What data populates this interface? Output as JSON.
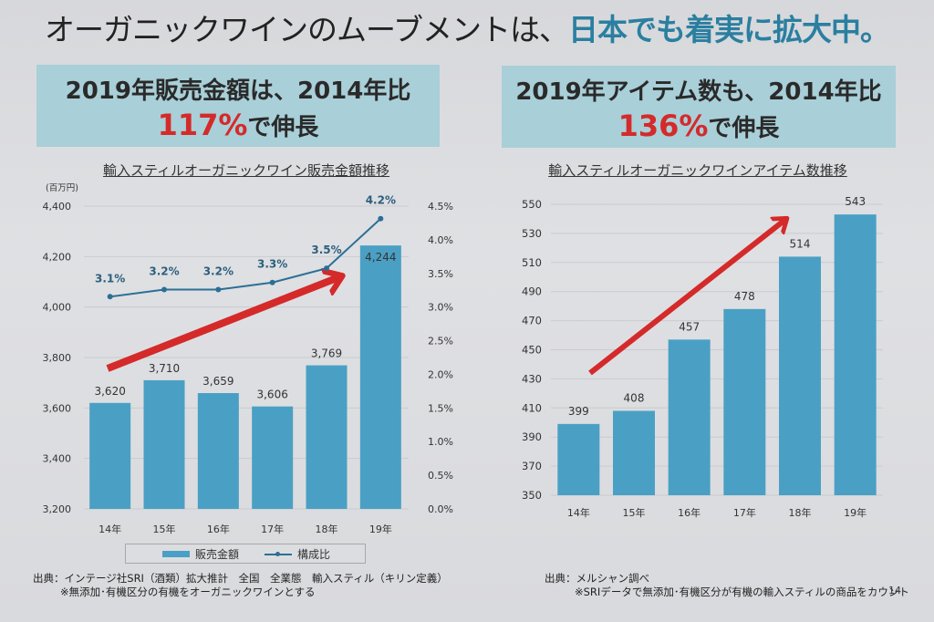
{
  "main_title": {
    "part1": "オーガニックワインのムーブメントは、",
    "part2": "日本でも着実に拡大中。"
  },
  "highlight_left": {
    "line1": "2019年販売金額は、2014年比",
    "pct": "117%",
    "suffix": "で伸長"
  },
  "highlight_right": {
    "line1": "2019年アイテム数も、2014年比",
    "pct": "136%",
    "suffix": "で伸長"
  },
  "colors": {
    "bar": "#4aa0c4",
    "line": "#2c6f95",
    "arrow": "#d42a2a",
    "title_accent": "#2a7fa0"
  },
  "legend": {
    "bar_label": "販売金額",
    "line_label": "構成比"
  },
  "notes": {
    "left_source": "出典：インテージ社SRI（酒類）拡大推計　全国　全業態　輸入スティル（キリン定義）",
    "left_note": "※無添加･有機区分の有機をオーガニックワインとする",
    "right_source": "出典：メルシャン調べ",
    "right_note": "※SRIデータで無添加･有機区分が有機の輸入スティルの商品をカウント",
    "page_number": "14"
  },
  "chart_data": [
    {
      "type": "bar",
      "title": "輸入スティルオーガニックワイン販売金額推移",
      "unit_label": "(百万円)",
      "categories": [
        "14年",
        "15年",
        "16年",
        "17年",
        "18年",
        "19年"
      ],
      "series": [
        {
          "name": "販売金額",
          "type": "bar",
          "axis": "left",
          "values": [
            3620,
            3710,
            3659,
            3606,
            3769,
            4244
          ],
          "labels": [
            "3,620",
            "3,710",
            "3,659",
            "3,606",
            "3,769",
            "4,244"
          ]
        },
        {
          "name": "構成比",
          "type": "line",
          "axis": "right",
          "values": [
            3.1,
            3.2,
            3.2,
            3.3,
            3.5,
            4.2
          ],
          "labels": [
            "3.1%",
            "3.2%",
            "3.2%",
            "3.3%",
            "3.5%",
            "4.2%"
          ]
        }
      ],
      "ylim": [
        3200,
        4400
      ],
      "yticks": [
        "3,200",
        "3,400",
        "3,600",
        "3,800",
        "4,000",
        "4,200",
        "4,400"
      ],
      "y2lim": [
        0,
        4.5
      ],
      "y2ticks": [
        "0.0%",
        "0.5%",
        "1.0%",
        "1.5%",
        "2.0%",
        "2.5%",
        "3.0%",
        "3.5%",
        "4.0%",
        "4.5%"
      ],
      "grid": true,
      "legend_position": "bottom",
      "annotation": "red upward trend arrow"
    },
    {
      "type": "bar",
      "title": "輸入スティルオーガニックワインアイテム数推移",
      "categories": [
        "14年",
        "15年",
        "16年",
        "17年",
        "18年",
        "19年"
      ],
      "values": [
        399,
        408,
        457,
        478,
        514,
        543
      ],
      "ylim": [
        350,
        550
      ],
      "yticks": [
        "350",
        "370",
        "390",
        "410",
        "430",
        "450",
        "470",
        "490",
        "510",
        "530",
        "550"
      ],
      "grid": true,
      "annotation": "red upward trend arrow"
    }
  ]
}
